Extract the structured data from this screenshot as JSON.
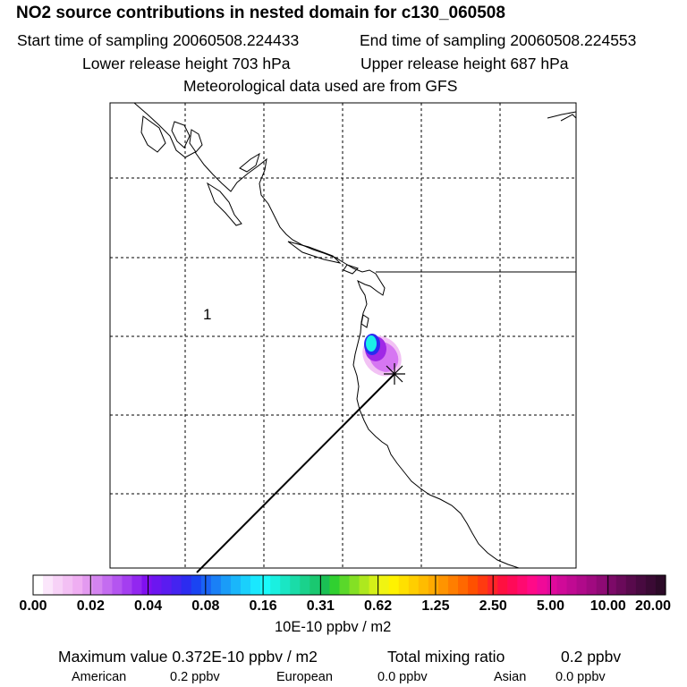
{
  "header": {
    "title": "NO2 source contributions in nested domain for c130_060508",
    "start_time": "Start time of sampling 20060508.224433",
    "end_time": "End time of sampling 20060508.224553",
    "lower_height": "Lower release height  703 hPa",
    "upper_height": "Upper release height  687 hPa",
    "met_note": "Meteorological data used are from GFS"
  },
  "map": {
    "region_label": "1",
    "release_marker": "release-point-asterisk"
  },
  "colorbar": {
    "tick_labels": [
      "0.00",
      "0.02",
      "0.04",
      "0.08",
      "0.16",
      "0.31",
      "0.62",
      "1.25",
      "2.50",
      "5.00",
      "10.00",
      "20.00"
    ],
    "colors": [
      "#ffffff",
      "#fbe6fb",
      "#f7d2f7",
      "#f3c0f4",
      "#efaef2",
      "#e39af0",
      "#d484f0",
      "#c46cf0",
      "#b455f0",
      "#a43ef0",
      "#9227f0",
      "#8010f0",
      "#6c16f0",
      "#5a1cf0",
      "#4424f0",
      "#2c2cf0",
      "#1a44f2",
      "#1a62f4",
      "#1a80f6",
      "#1a9cf8",
      "#1ab6fa",
      "#1ad0fc",
      "#1ae8fe",
      "#1afafa",
      "#1af0e0",
      "#1ae6c4",
      "#1adca8",
      "#1ad28c",
      "#1ac870",
      "#1ac054",
      "#30d030",
      "#5ad82a",
      "#84e024",
      "#aee81e",
      "#d4f018",
      "#f0f412",
      "#fff200",
      "#ffe000",
      "#ffce00",
      "#ffbc00",
      "#ffaa00",
      "#ff9400",
      "#ff7e00",
      "#ff6800",
      "#ff5000",
      "#ff3a10",
      "#ff2428",
      "#ff1040",
      "#ff0a58",
      "#ff0a70",
      "#ff0a88",
      "#f00a98",
      "#e00a9c",
      "#d00a98",
      "#c00a92",
      "#b00a8a",
      "#a00a80",
      "#8e0a74",
      "#7c0a68",
      "#6a0a5a",
      "#580a4c",
      "#480a40",
      "#3a0a34",
      "#2c0a28"
    ],
    "units": "10E-10 ppbv / m2"
  },
  "stats": {
    "max_value": "Maximum value  0.372E-10 ppbv / m2",
    "total_label": "Total mixing ratio",
    "total_value": "0.2 ppbv",
    "american_label": "American",
    "american_value": "0.2 ppbv",
    "european_label": "European",
    "european_value": "0.0 ppbv",
    "asian_label": "Asian",
    "asian_value": "0.0 ppbv"
  }
}
